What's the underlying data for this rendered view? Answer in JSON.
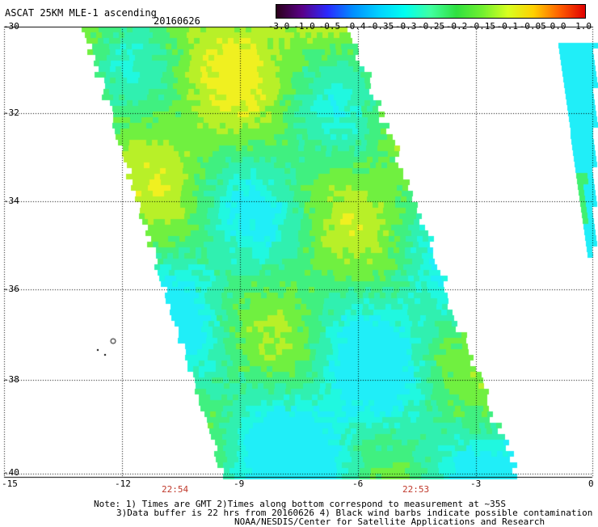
{
  "header": {
    "title": "ASCAT 25KM MLE-1 ascending",
    "date": "20160626"
  },
  "colorbar": {
    "tick_labels": [
      "-3.0",
      "-1.0",
      "-0.5",
      "-0.4",
      "-0.35",
      "-0.3",
      "-0.25",
      "-0.2",
      "-0.15",
      "-0.1",
      "-0.05",
      "0.0",
      "1.0"
    ],
    "colors": [
      "#2a001a",
      "#5a0088",
      "#2a2aff",
      "#0090ff",
      "#00d2ff",
      "#00fff0",
      "#40ffa0",
      "#30e040",
      "#70f030",
      "#d8ff20",
      "#ffd000",
      "#ff6000",
      "#e00000"
    ]
  },
  "axes": {
    "lat_labels": [
      "-30",
      "-32",
      "-34",
      "-36",
      "-38",
      "-40"
    ],
    "lon_labels": [
      "-15",
      "-12",
      "-9",
      "-6",
      "-3",
      "0"
    ],
    "gridlines": true,
    "gridline_style": "dotted"
  },
  "swath_times": [
    "22:54",
    "22:53"
  ],
  "notes": [
    "Note: 1) Times are GMT 2)Times along bottom correspond to measurement at ~35S",
    "3)Data buffer is 22 hrs from 20160626 4) Black wind barbs indicate possible contamination",
    "NOAA/NESDIS/Center for Satellite Applications and Research"
  ]
}
